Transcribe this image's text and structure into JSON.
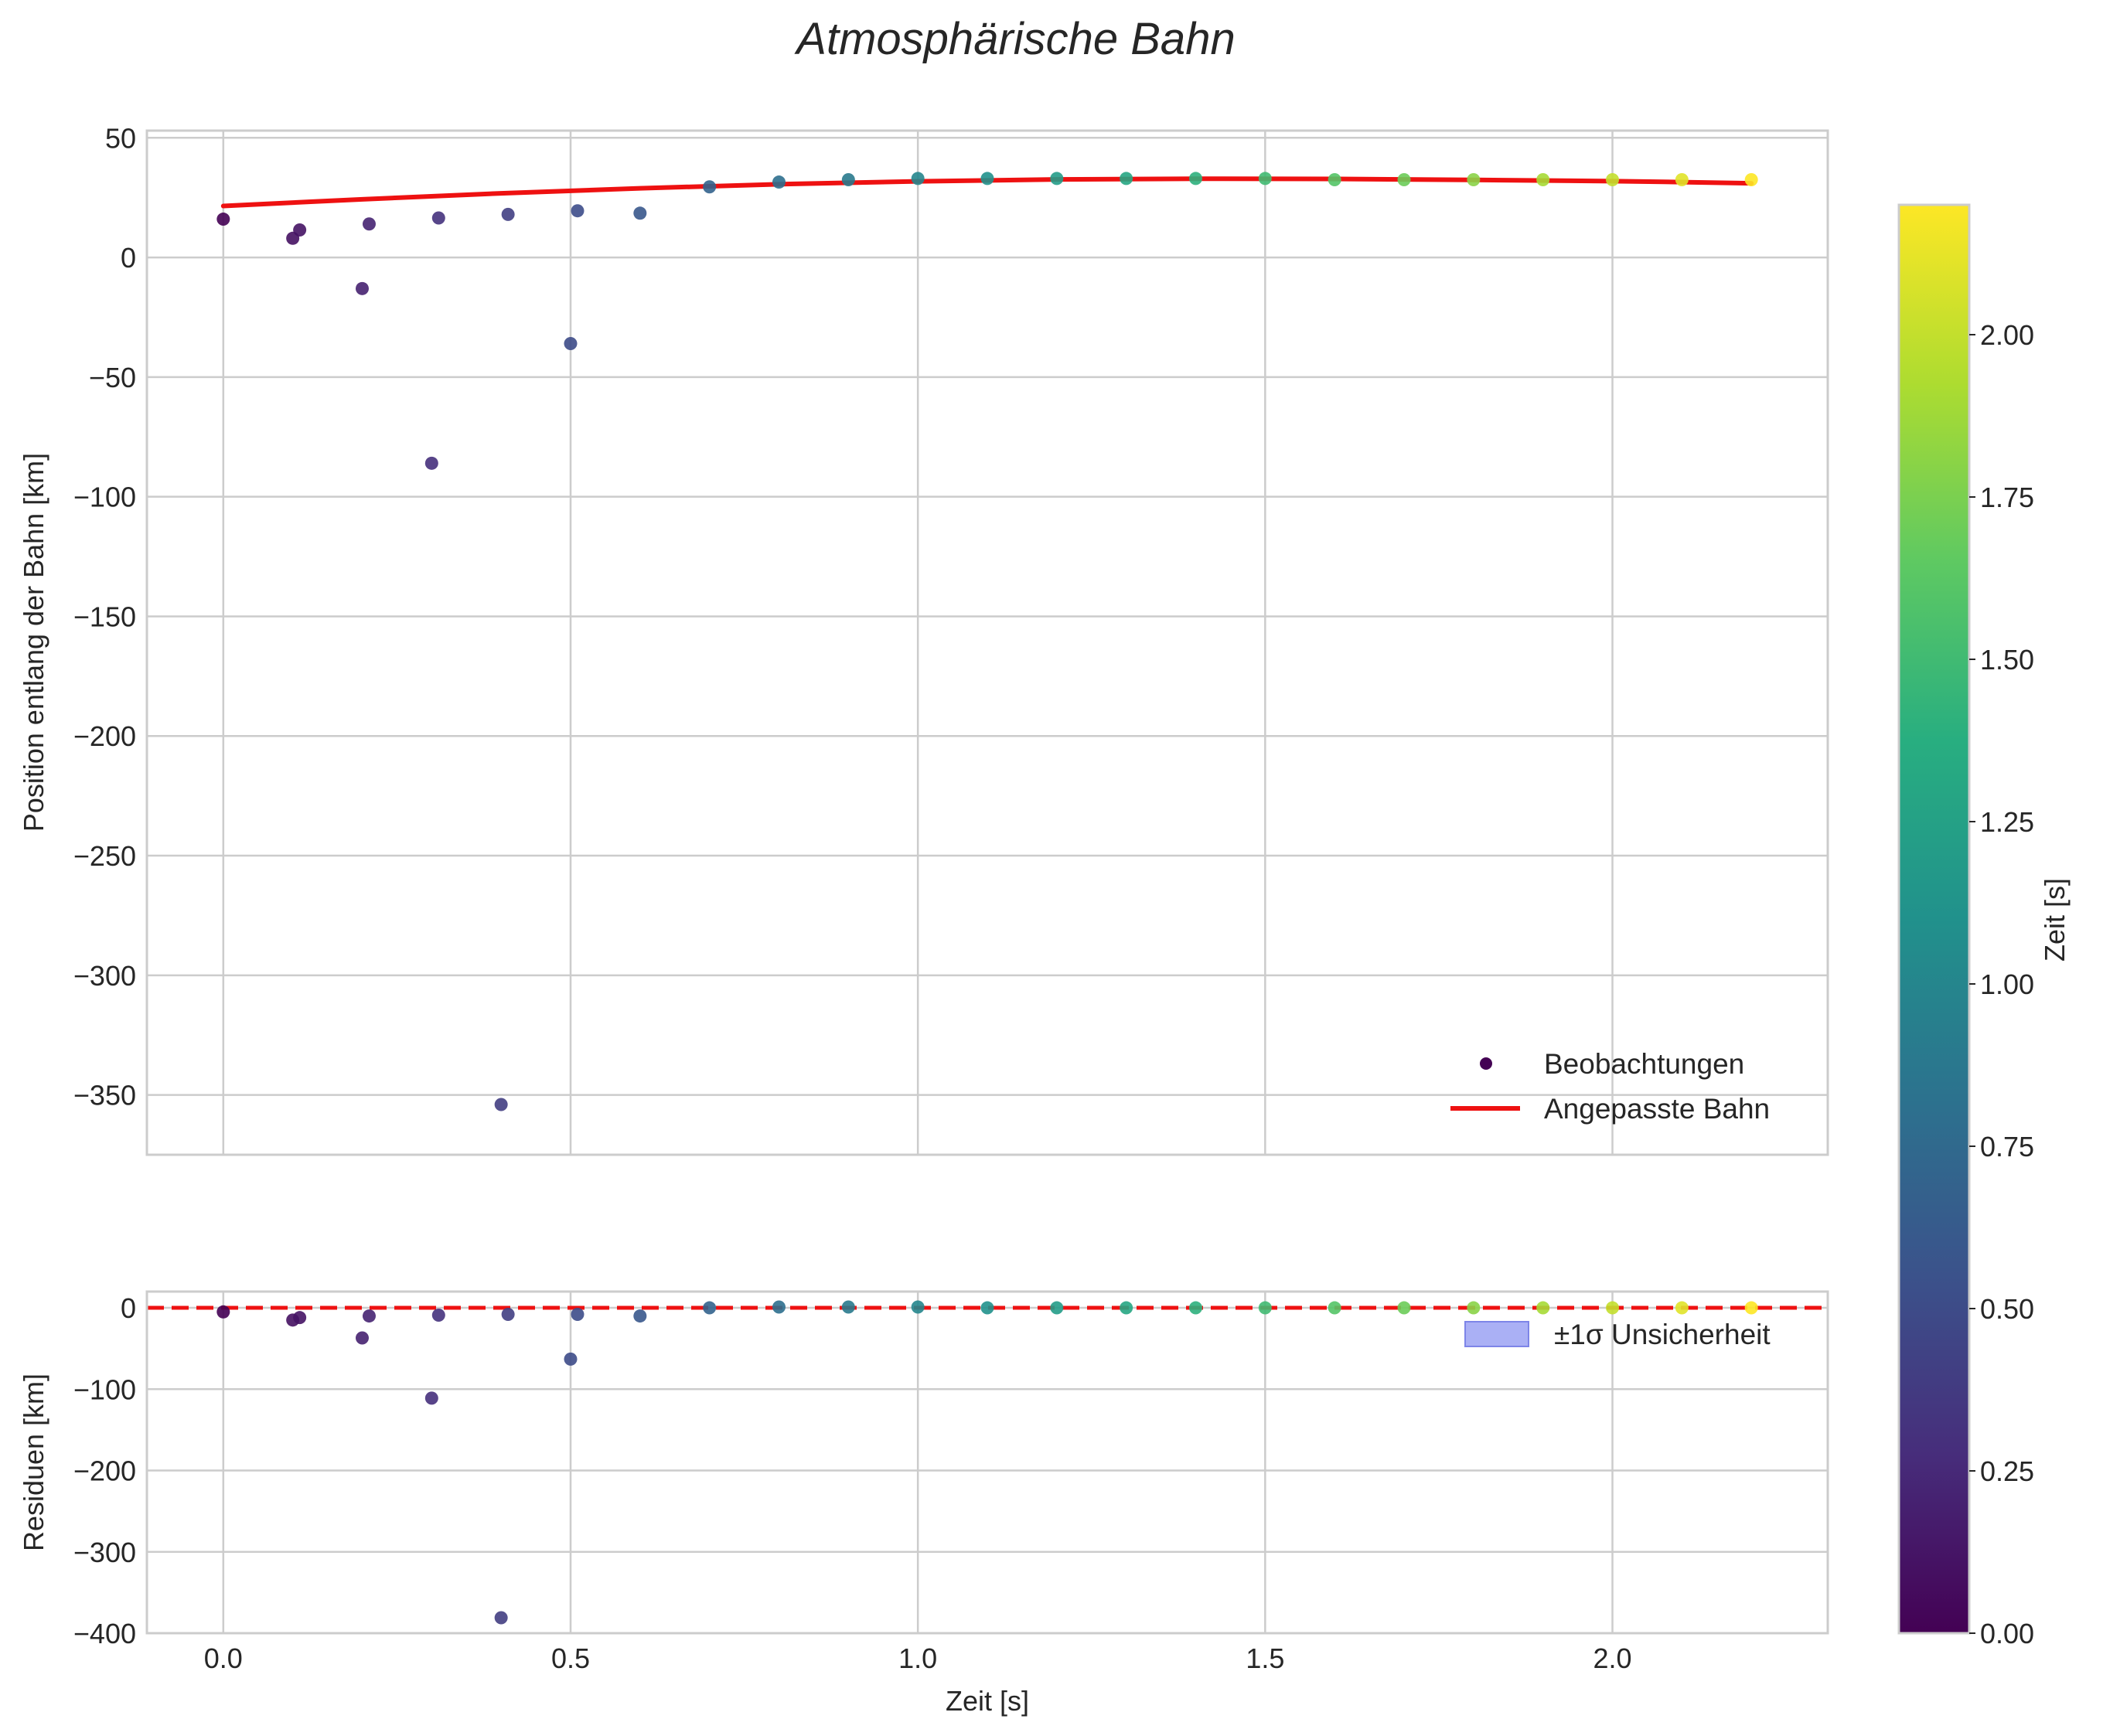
{
  "chart_data": {
    "title": "Atmosphärische Bahn",
    "type": "scatter",
    "top_panel": {
      "type": "scatter+line",
      "ylabel": "Position entlang der Bahn [km]",
      "xlim": [
        -0.11,
        2.31
      ],
      "ylim": [
        -375,
        53
      ],
      "yticks": [
        50,
        0,
        -50,
        -100,
        -150,
        -200,
        -250,
        -300,
        -350
      ],
      "ytick_labels": [
        "50",
        "0",
        "−50",
        "−100",
        "−150",
        "−200",
        "−250",
        "−300",
        "−350"
      ],
      "grid": true,
      "legend_position": "bottom-right",
      "legend": [
        "Beobachtungen",
        "Angepasste Bahn"
      ],
      "observations": [
        {
          "x": 0.0,
          "y": 16
        },
        {
          "x": 0.1,
          "y": 8
        },
        {
          "x": 0.11,
          "y": 11.5
        },
        {
          "x": 0.2,
          "y": -13
        },
        {
          "x": 0.21,
          "y": 14
        },
        {
          "x": 0.3,
          "y": -86
        },
        {
          "x": 0.31,
          "y": 16.5
        },
        {
          "x": 0.4,
          "y": -354
        },
        {
          "x": 0.41,
          "y": 18
        },
        {
          "x": 0.5,
          "y": -36
        },
        {
          "x": 0.51,
          "y": 19.5
        },
        {
          "x": 0.6,
          "y": 18.5
        },
        {
          "x": 0.7,
          "y": 29.5
        },
        {
          "x": 0.8,
          "y": 31.5
        },
        {
          "x": 0.9,
          "y": 32.5
        },
        {
          "x": 1.0,
          "y": 33
        },
        {
          "x": 1.1,
          "y": 33
        },
        {
          "x": 1.2,
          "y": 33
        },
        {
          "x": 1.3,
          "y": 33
        },
        {
          "x": 1.4,
          "y": 33
        },
        {
          "x": 1.5,
          "y": 33
        },
        {
          "x": 1.6,
          "y": 32.5
        },
        {
          "x": 1.7,
          "y": 32.5
        },
        {
          "x": 1.8,
          "y": 32.5
        },
        {
          "x": 1.9,
          "y": 32.5
        },
        {
          "x": 2.0,
          "y": 32.5
        },
        {
          "x": 2.1,
          "y": 32.5
        },
        {
          "x": 2.2,
          "y": 32.5
        }
      ],
      "fit_curve": {
        "name": "Angepasste Bahn",
        "color": "#ee1111",
        "x": [
          0.0,
          0.2,
          0.4,
          0.6,
          0.8,
          1.0,
          1.2,
          1.4,
          1.6,
          1.8,
          2.0,
          2.2
        ],
        "y": [
          21.5,
          24.3,
          26.8,
          28.9,
          30.6,
          31.8,
          32.6,
          32.9,
          32.8,
          32.4,
          31.9,
          31.0
        ]
      }
    },
    "bottom_panel": {
      "type": "scatter",
      "ylabel": "Residuen [km]",
      "xlabel": "Zeit [s]",
      "xlim": [
        -0.11,
        2.31
      ],
      "ylim": [
        -400,
        20
      ],
      "xticks": [
        0.0,
        0.5,
        1.0,
        1.5,
        2.0
      ],
      "xtick_labels": [
        "0.0",
        "0.5",
        "1.0",
        "1.5",
        "2.0"
      ],
      "yticks": [
        0,
        -100,
        -200,
        -300,
        -400
      ],
      "ytick_labels": [
        "0",
        "−100",
        "−200",
        "−300",
        "−400"
      ],
      "zero_line": {
        "y": 0,
        "color": "#ee1111",
        "style": "dashed"
      },
      "legend": [
        "±1σ Unsicherheit"
      ],
      "legend_color": "#aab0f5",
      "legend_position": "top-right",
      "residuals": [
        {
          "x": 0.0,
          "y": -5
        },
        {
          "x": 0.1,
          "y": -15
        },
        {
          "x": 0.11,
          "y": -12
        },
        {
          "x": 0.2,
          "y": -37
        },
        {
          "x": 0.21,
          "y": -10
        },
        {
          "x": 0.3,
          "y": -111
        },
        {
          "x": 0.31,
          "y": -9
        },
        {
          "x": 0.4,
          "y": -381
        },
        {
          "x": 0.41,
          "y": -8
        },
        {
          "x": 0.5,
          "y": -63
        },
        {
          "x": 0.51,
          "y": -8
        },
        {
          "x": 0.6,
          "y": -10
        },
        {
          "x": 0.7,
          "y": 0
        },
        {
          "x": 0.8,
          "y": 1
        },
        {
          "x": 0.9,
          "y": 1
        },
        {
          "x": 1.0,
          "y": 1
        },
        {
          "x": 1.1,
          "y": 0
        },
        {
          "x": 1.2,
          "y": 0
        },
        {
          "x": 1.3,
          "y": 0
        },
        {
          "x": 1.4,
          "y": 0
        },
        {
          "x": 1.5,
          "y": 0
        },
        {
          "x": 1.6,
          "y": 0
        },
        {
          "x": 1.7,
          "y": 0
        },
        {
          "x": 1.8,
          "y": 0
        },
        {
          "x": 1.9,
          "y": 0
        },
        {
          "x": 2.0,
          "y": 0
        },
        {
          "x": 2.1,
          "y": 0
        },
        {
          "x": 2.2,
          "y": 0
        }
      ]
    },
    "colorbar": {
      "label": "Zeit [s]",
      "colormap": "viridis",
      "range": [
        0.0,
        2.2
      ],
      "ticks": [
        0.0,
        0.25,
        0.5,
        0.75,
        1.0,
        1.25,
        1.5,
        1.75,
        2.0
      ],
      "tick_labels": [
        "0.00",
        "0.25",
        "0.50",
        "0.75",
        "1.00",
        "1.25",
        "1.50",
        "1.75",
        "2.00"
      ]
    }
  }
}
